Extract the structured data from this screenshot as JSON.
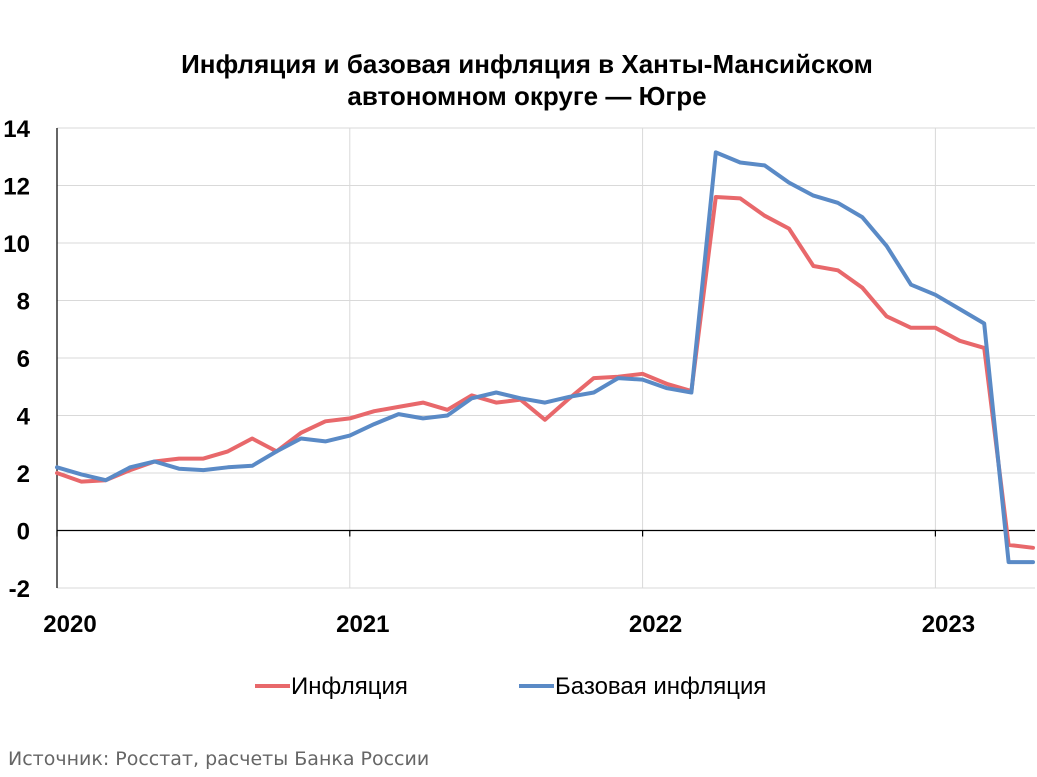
{
  "source": "Источник: Росстат, расчеты Банка России",
  "chart_data": {
    "type": "line",
    "title_lines": [
      "Инфляция и базовая инфляция в Ханты-Мансийском",
      "автономном округе — Югре"
    ],
    "ylim": [
      -2,
      14
    ],
    "yticks": [
      "14",
      "12",
      "10",
      "8",
      "6",
      "4",
      "2",
      "0",
      "-2"
    ],
    "ytick_values": [
      14,
      12,
      10,
      8,
      6,
      4,
      2,
      0,
      -2
    ],
    "xticks": [
      "2020",
      "2021",
      "2022",
      "2023"
    ],
    "grid": true,
    "legend_position": "bottom",
    "series": [
      {
        "name": "Инфляция",
        "color": "#e8686b",
        "values": [
          2.0,
          1.7,
          1.75,
          2.1,
          2.4,
          2.5,
          2.5,
          2.75,
          3.2,
          2.75,
          3.4,
          3.8,
          3.9,
          4.15,
          4.3,
          4.45,
          4.2,
          4.7,
          4.45,
          4.55,
          3.85,
          4.6,
          5.3,
          5.35,
          5.45,
          5.1,
          4.85,
          11.6,
          11.55,
          10.95,
          10.5,
          9.2,
          9.05,
          8.45,
          7.45,
          7.05,
          7.05,
          6.6,
          6.35,
          -0.5,
          -0.6
        ]
      },
      {
        "name": "Базовая инфляция",
        "color": "#5a8ac6",
        "values": [
          2.2,
          1.95,
          1.75,
          2.2,
          2.4,
          2.15,
          2.1,
          2.2,
          2.25,
          2.75,
          3.2,
          3.1,
          3.3,
          3.7,
          4.05,
          3.9,
          4.0,
          4.6,
          4.8,
          4.6,
          4.45,
          4.65,
          4.8,
          5.3,
          5.25,
          4.95,
          4.8,
          13.15,
          12.8,
          12.7,
          12.1,
          11.65,
          11.4,
          10.9,
          9.9,
          8.55,
          8.2,
          7.7,
          7.2,
          -1.1,
          -1.1
        ]
      }
    ]
  }
}
